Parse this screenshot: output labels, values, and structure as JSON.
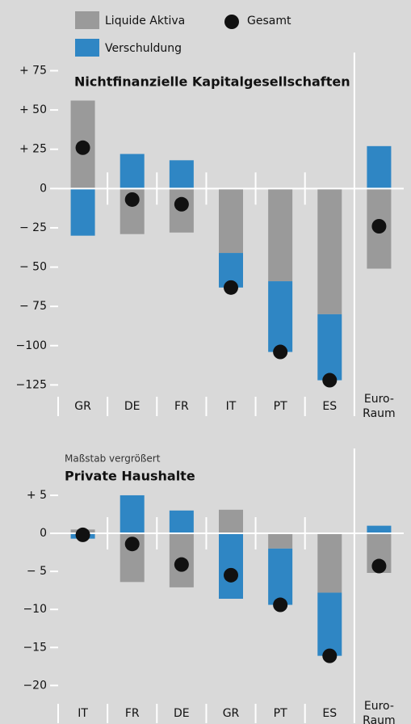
{
  "chart_data": [
    {
      "type": "bar",
      "title": "Nichtfinanzielle Kapitalgesellschaften",
      "categories": [
        "GR",
        "DE",
        "FR",
        "IT",
        "PT",
        "ES",
        "Euro-\nRaum"
      ],
      "series": [
        {
          "name": "Liquide Aktiva",
          "type": "bar",
          "color": "#9a9a9a",
          "values": [
            56,
            -29,
            -28,
            -41,
            -59,
            -80,
            -51
          ]
        },
        {
          "name": "Verschuldung",
          "type": "bar",
          "color": "#2f86c4",
          "values": [
            -30,
            22,
            18,
            -22,
            -45,
            -42,
            27
          ]
        },
        {
          "name": "Gesamt",
          "type": "dot",
          "color": "#111111",
          "values": [
            26,
            -7,
            -10,
            -63,
            -104,
            -122,
            -24
          ]
        }
      ],
      "ylim": [
        -132,
        84
      ],
      "yticks": [
        {
          "value": 75,
          "label": "+ 75"
        },
        {
          "value": 50,
          "label": "+ 50"
        },
        {
          "value": 25,
          "label": "+ 25"
        },
        0,
        {
          "value": -25,
          "label": "− 25"
        },
        {
          "value": -50,
          "label": "− 50"
        },
        {
          "value": -75,
          "label": "− 75"
        },
        {
          "value": -100,
          "label": "−100"
        },
        {
          "value": -125,
          "label": "−125"
        }
      ]
    },
    {
      "type": "bar",
      "subtitle": "Maßstab vergrößert",
      "title": "Private Haushalte",
      "categories": [
        "IT",
        "FR",
        "DE",
        "GR",
        "PT",
        "ES",
        "Euro-\nRaum"
      ],
      "series": [
        {
          "type": "bar",
          "color": "#9a9a9a",
          "values": [
            0.5,
            -6.4,
            -7.1,
            3.1,
            -2,
            -7.8,
            -5.2
          ]
        },
        {
          "type": "bar",
          "color": "#2f86c4",
          "values": [
            -0.7,
            5,
            3,
            -8.6,
            -7.4,
            -8.3,
            1
          ]
        },
        {
          "type": "dot",
          "color": "#111111",
          "values": [
            -0.2,
            -1.4,
            -4.1,
            -5.5,
            -9.4,
            -16.1,
            -4.3
          ]
        }
      ],
      "ylim": [
        -22.3,
        8.5
      ],
      "yticks": [
        {
          "value": 5,
          "label": "+ 5"
        },
        0,
        {
          "value": -5,
          "label": "− 5"
        },
        {
          "value": -10,
          "label": "−10"
        },
        {
          "value": -15,
          "label": "−15"
        },
        {
          "value": -20,
          "label": "−20"
        }
      ]
    }
  ]
}
